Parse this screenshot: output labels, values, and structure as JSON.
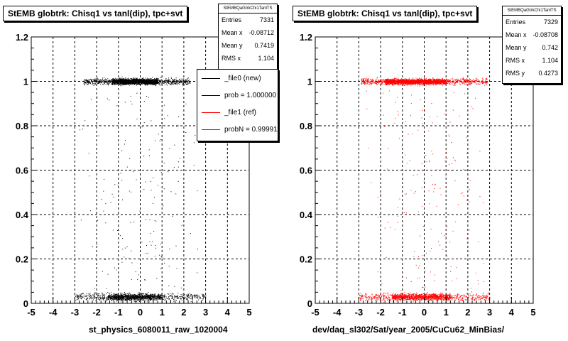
{
  "chart_data": [
    {
      "type": "scatter",
      "title": "StEMB globtrk: Chisq1 vs tanl(dip), tpc+svt",
      "xlabel": "st_physics_6080011_raw_1020004",
      "ylabel": "",
      "xlim": [
        -5,
        5
      ],
      "ylim": [
        0,
        1.2
      ],
      "x_ticks": [
        "-5",
        "-4",
        "-3",
        "-2",
        "-1",
        "0",
        "1",
        "2",
        "3",
        "4",
        "5"
      ],
      "y_ticks": [
        "0",
        "0.2",
        "0.4",
        "0.6",
        "0.8",
        "1",
        "1.2"
      ],
      "grid": true,
      "series": [
        {
          "name": "_file0 (new)",
          "color": "#000000",
          "bands": [
            {
              "y": 1.0,
              "x_min": -2.6,
              "x_max": 2.3,
              "y_spread": 0.025,
              "core_x": [
                -1.3,
                0.8
              ]
            },
            {
              "y": 0.03,
              "x_min": -3.0,
              "x_max": 3.0,
              "y_spread": 0.03,
              "core_x": [
                -1.5,
                1.0
              ]
            }
          ]
        }
      ],
      "stats": {
        "name": "StEMBQaGtrkChi1TanlTS",
        "entries": "7331",
        "mean_x": "-0.08712",
        "mean_y": "0.7419",
        "rms_x": "1.104"
      },
      "legend": [
        {
          "label": "_file0 (new)",
          "color": "#000000"
        },
        {
          "label": "prob = 1.000000",
          "color": "#000000"
        },
        {
          "label": "_file1 (ref)",
          "color": "#ff0000"
        },
        {
          "label": "probN = 0.999916",
          "color": "#ff0000"
        }
      ]
    },
    {
      "type": "scatter",
      "title": "StEMB globtrk: Chisq1 vs tanl(dip), tpc+svt",
      "xlabel": "dev/daq_sl302/Sat/year_2005/CuCu62_MinBias/",
      "ylabel": "",
      "xlim": [
        -5,
        5
      ],
      "ylim": [
        0,
        1.2
      ],
      "x_ticks": [
        "-5",
        "-4",
        "-3",
        "-2",
        "-1",
        "0",
        "1",
        "2",
        "3",
        "4",
        "5"
      ],
      "y_ticks": [
        "0",
        "0.2",
        "0.4",
        "0.6",
        "0.8",
        "1",
        "1.2"
      ],
      "grid": true,
      "series": [
        {
          "name": "",
          "color": "#ff0000",
          "bands": [
            {
              "y": 1.0,
              "x_min": -2.9,
              "x_max": 2.9,
              "y_spread": 0.025,
              "core_x": [
                -1.8,
                1.0
              ]
            },
            {
              "y": 0.03,
              "x_min": -3.0,
              "x_max": 3.0,
              "y_spread": 0.03,
              "core_x": [
                -1.5,
                1.2
              ]
            }
          ]
        }
      ],
      "stats": {
        "name": "StEMBQaGtrkChi1TanlTS",
        "entries": "7329",
        "mean_x": "-0.08708",
        "mean_y": "0.742",
        "rms_x": "1.104",
        "rms_y": "0.4273"
      }
    }
  ],
  "stats_labels": {
    "entries": "Entries",
    "mean_x": "Mean x",
    "mean_y": "Mean y",
    "rms_x": "RMS x",
    "rms_y": "RMS y"
  }
}
